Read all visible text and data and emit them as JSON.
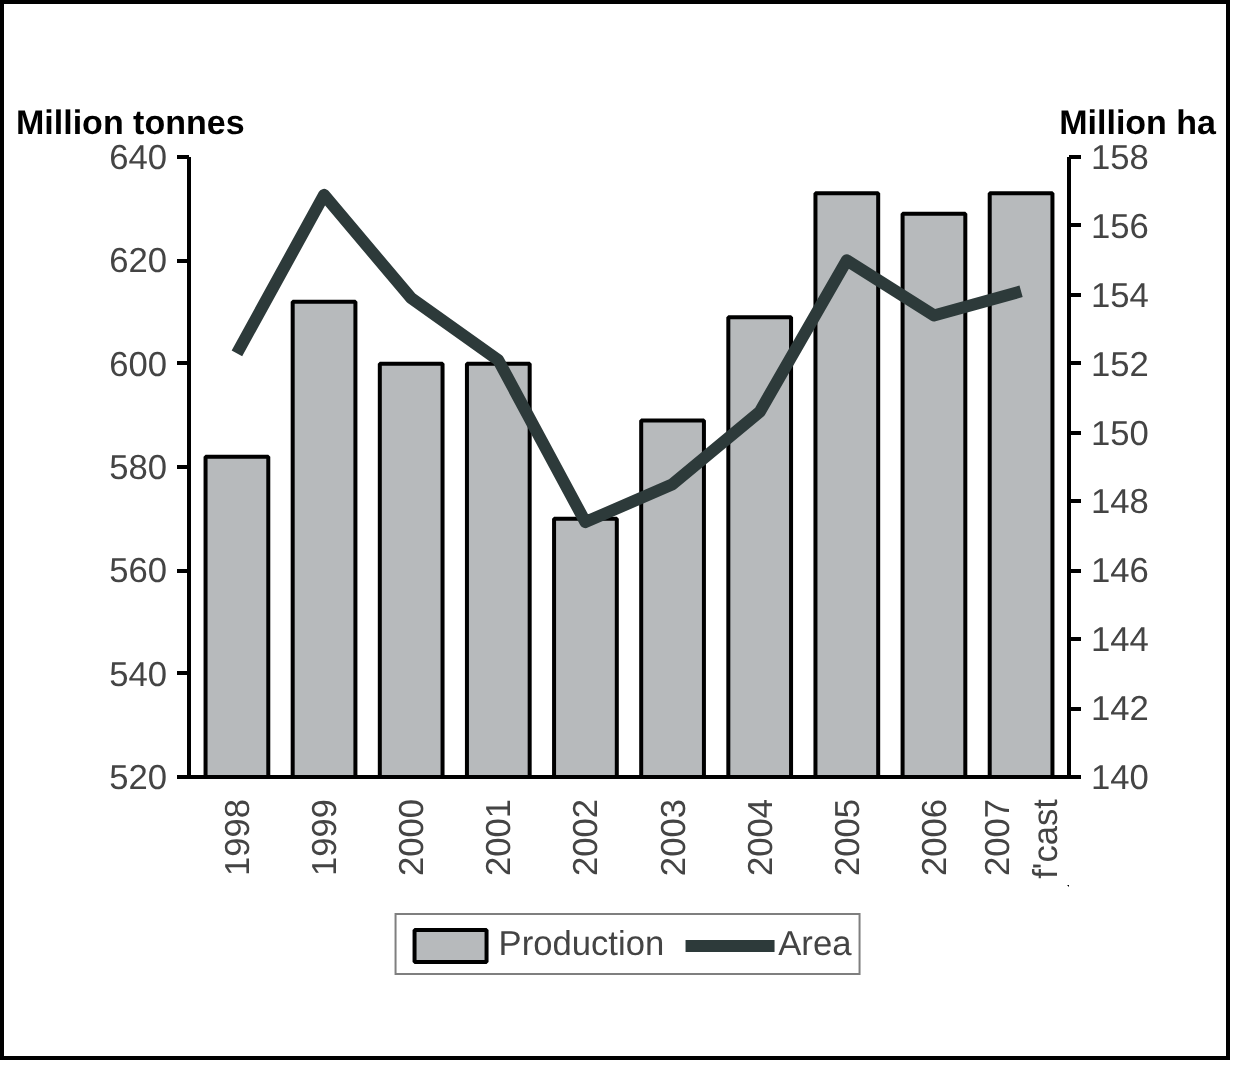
{
  "chart_data": {
    "type": "bar",
    "categories": [
      "1998",
      "1999",
      "2000",
      "2001",
      "2002",
      "2003",
      "2004",
      "2005",
      "2006",
      "2007\nf'cast"
    ],
    "ylabel": "Million tonnes",
    "y2label": "Million ha",
    "series": [
      {
        "name": "Production",
        "color": "#b7babc",
        "values": [
          582,
          612,
          600,
          600,
          570,
          589,
          609,
          633,
          629,
          633
        ]
      },
      {
        "name": "Area",
        "type": "line",
        "axis": "y2",
        "color": "#2d3a3a",
        "values": [
          152.3,
          156.9,
          153.9,
          152.1,
          147.4,
          148.5,
          150.6,
          155.0,
          153.4,
          154.1
        ]
      }
    ],
    "ylim": [
      520,
      640
    ],
    "yticks": [
      520,
      540,
      560,
      580,
      600,
      620,
      640
    ],
    "y2lim": [
      140,
      158
    ],
    "y2ticks": [
      140,
      142,
      144,
      146,
      148,
      150,
      152,
      154,
      156,
      158
    ],
    "grid": false,
    "legend": "bottom"
  }
}
